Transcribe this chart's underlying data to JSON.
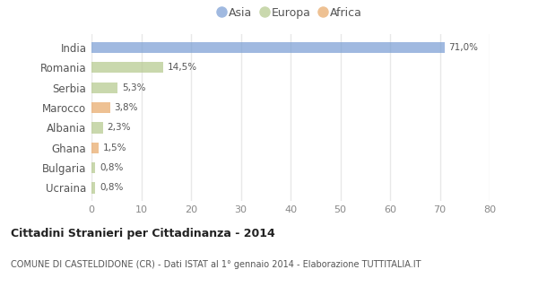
{
  "countries": [
    "India",
    "Romania",
    "Serbia",
    "Marocco",
    "Albania",
    "Ghana",
    "Bulgaria",
    "Ucraina"
  ],
  "values": [
    71.0,
    14.5,
    5.3,
    3.8,
    2.3,
    1.5,
    0.8,
    0.8
  ],
  "labels": [
    "71,0%",
    "14,5%",
    "5,3%",
    "3,8%",
    "2,3%",
    "1,5%",
    "0,8%",
    "0,8%"
  ],
  "continents": [
    "Asia",
    "Europa",
    "Europa",
    "Africa",
    "Europa",
    "Africa",
    "Europa",
    "Europa"
  ],
  "colors": {
    "Asia": "#7b9fd4",
    "Europa": "#b5c98e",
    "Africa": "#e8a96a"
  },
  "legend_labels": [
    "Asia",
    "Europa",
    "Africa"
  ],
  "legend_colors": [
    "#7b9fd4",
    "#b5c98e",
    "#e8a96a"
  ],
  "xlim": [
    0,
    80
  ],
  "xticks": [
    0,
    10,
    20,
    30,
    40,
    50,
    60,
    70,
    80
  ],
  "title_main": "Cittadini Stranieri per Cittadinanza - 2014",
  "title_sub": "COMUNE DI CASTELDIDONE (CR) - Dati ISTAT al 1° gennaio 2014 - Elaborazione TUTTITALIA.IT",
  "fig_bg": "#ffffff",
  "chart_bg": "#ffffff",
  "bar_alpha": 0.72,
  "grid_color": "#e8e8e8"
}
